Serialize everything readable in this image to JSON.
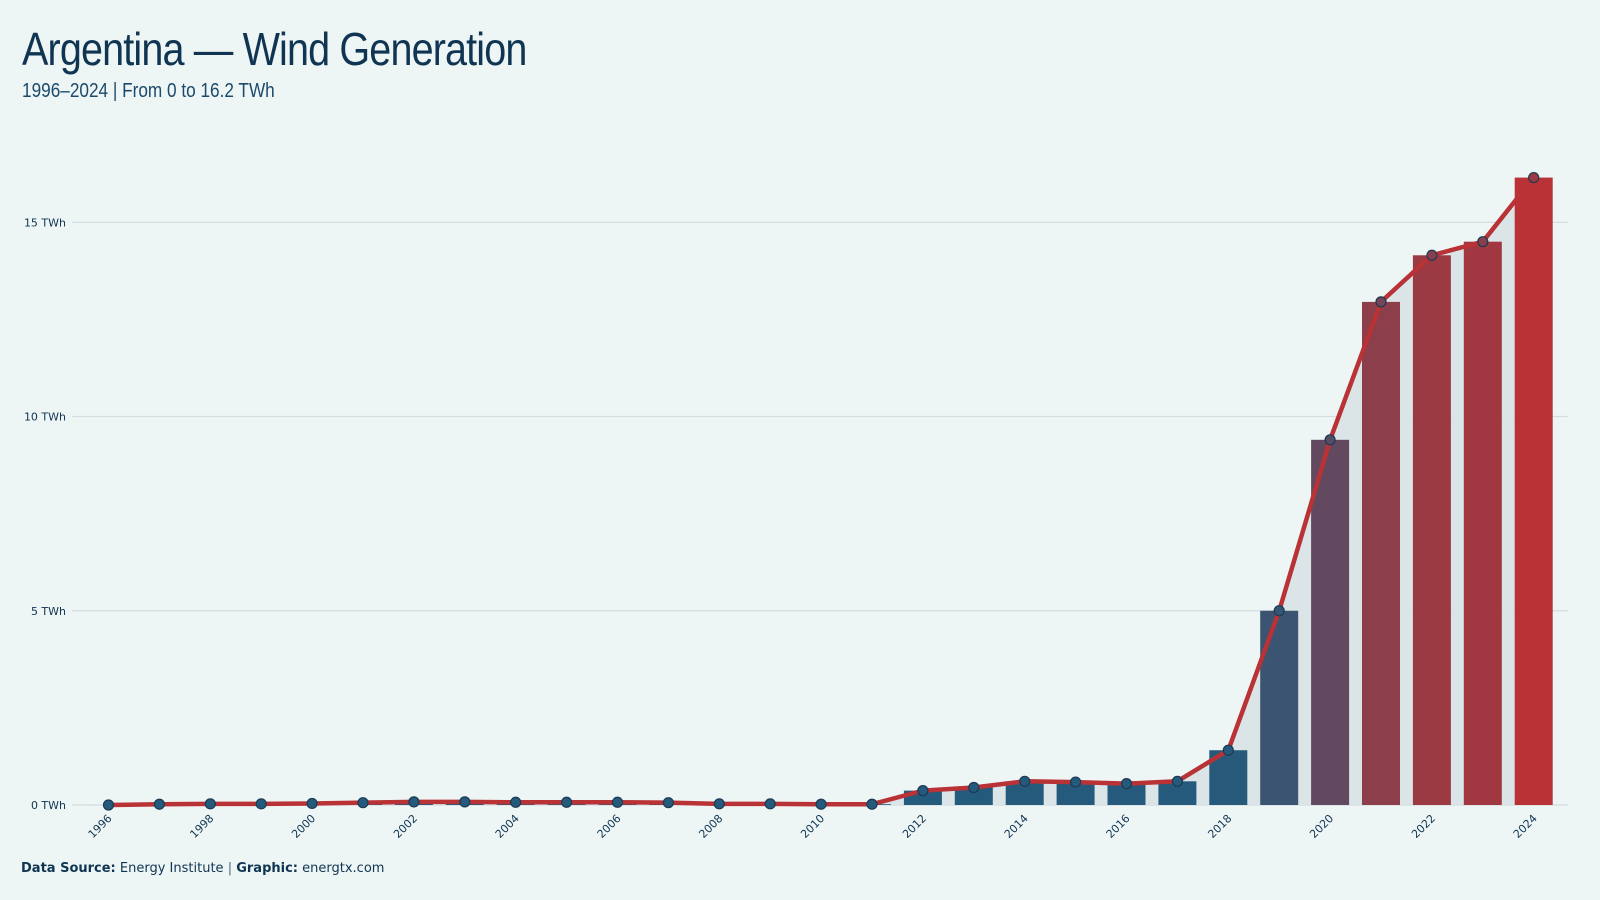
{
  "header": {
    "title": "Argentina — Wind Generation",
    "subtitle": "1996–2024 | From 0 to 16.2 TWh"
  },
  "footer": {
    "source_label": "Data Source:",
    "source_value": "Energy Institute",
    "separator": "|",
    "graphic_label": "Graphic:",
    "graphic_value": "energtx.com"
  },
  "colors": {
    "background": "#eef5f5",
    "text": "#0f3553",
    "bar_low": "#245a7c",
    "bar_high": "#b83236",
    "line": "#b83236",
    "area": "#d8e3e7",
    "grid": "#d3dcdf"
  },
  "chart_data": {
    "type": "bar",
    "title": "Argentina — Wind Generation",
    "subtitle": "1996–2024 | From 0 to 16.2 TWh",
    "unit": "TWh",
    "categories": [
      1996,
      1997,
      1998,
      1999,
      2000,
      2001,
      2002,
      2003,
      2004,
      2005,
      2006,
      2007,
      2008,
      2009,
      2010,
      2011,
      2012,
      2013,
      2014,
      2015,
      2016,
      2017,
      2018,
      2019,
      2020,
      2021,
      2022,
      2023,
      2024
    ],
    "x_tick_labels": [
      "1996",
      "1998",
      "2000",
      "2002",
      "2004",
      "2006",
      "2008",
      "2010",
      "2012",
      "2014",
      "2016",
      "2018",
      "2020",
      "2022",
      "2024"
    ],
    "series": [
      {
        "name": "",
        "values": [
          0.0,
          0.02,
          0.03,
          0.03,
          0.04,
          0.06,
          0.08,
          0.08,
          0.07,
          0.07,
          0.07,
          0.06,
          0.03,
          0.03,
          0.02,
          0.02,
          0.37,
          0.45,
          0.61,
          0.59,
          0.55,
          0.61,
          1.41,
          5.0,
          9.4,
          12.95,
          14.15,
          14.5,
          16.15
        ]
      }
    ],
    "y_ticks": [
      0,
      5,
      10,
      15
    ],
    "y_tick_labels": [
      "0 TWh",
      "5 TWh",
      "10 TWh",
      "15 TWh"
    ],
    "ylim": [
      0,
      16.5
    ],
    "grid": true,
    "overlay": "line with markers and shaded area"
  }
}
